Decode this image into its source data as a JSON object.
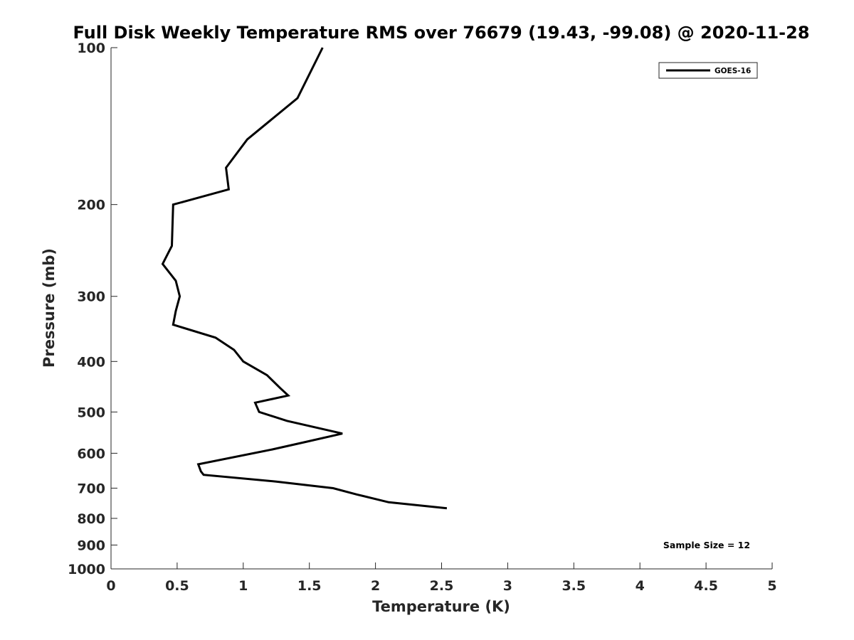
{
  "chart_data": {
    "type": "line",
    "title": "Full Disk Weekly Temperature RMS over 76679 (19.43, -99.08) @ 2020-11-28",
    "xlabel": "Temperature (K)",
    "ylabel": "Pressure (mb)",
    "xlim": [
      0,
      5
    ],
    "ylim": [
      1000,
      100
    ],
    "yscale": "log",
    "y_reversed": true,
    "grid": false,
    "legend_position": "top-right",
    "x_ticks": [
      "0",
      "0.5",
      "1",
      "1.5",
      "2",
      "2.5",
      "3",
      "3.5",
      "4",
      "4.5",
      "5"
    ],
    "y_ticks": [
      "100",
      "200",
      "300",
      "400",
      "500",
      "600",
      "700",
      "800",
      "900",
      "1000"
    ],
    "annotation": "Sample Size = 12",
    "series": [
      {
        "name": "GOES-16",
        "color": "#000000",
        "points": [
          {
            "x": 1.6,
            "p": 100
          },
          {
            "x": 1.41,
            "p": 125
          },
          {
            "x": 1.03,
            "p": 150
          },
          {
            "x": 0.87,
            "p": 170
          },
          {
            "x": 0.89,
            "p": 187
          },
          {
            "x": 0.47,
            "p": 200
          },
          {
            "x": 0.46,
            "p": 240
          },
          {
            "x": 0.39,
            "p": 260
          },
          {
            "x": 0.49,
            "p": 280
          },
          {
            "x": 0.52,
            "p": 300
          },
          {
            "x": 0.49,
            "p": 320
          },
          {
            "x": 0.47,
            "p": 340
          },
          {
            "x": 0.79,
            "p": 360
          },
          {
            "x": 0.93,
            "p": 380
          },
          {
            "x": 1.0,
            "p": 400
          },
          {
            "x": 1.18,
            "p": 425
          },
          {
            "x": 1.28,
            "p": 450
          },
          {
            "x": 1.34,
            "p": 465
          },
          {
            "x": 1.09,
            "p": 480
          },
          {
            "x": 1.12,
            "p": 500
          },
          {
            "x": 1.33,
            "p": 520
          },
          {
            "x": 1.75,
            "p": 550
          },
          {
            "x": 1.48,
            "p": 570
          },
          {
            "x": 1.22,
            "p": 590
          },
          {
            "x": 0.66,
            "p": 630
          },
          {
            "x": 0.68,
            "p": 650
          },
          {
            "x": 0.7,
            "p": 660
          },
          {
            "x": 1.25,
            "p": 680
          },
          {
            "x": 1.68,
            "p": 700
          },
          {
            "x": 1.86,
            "p": 720
          },
          {
            "x": 2.1,
            "p": 745
          },
          {
            "x": 2.54,
            "p": 765
          }
        ]
      }
    ]
  }
}
